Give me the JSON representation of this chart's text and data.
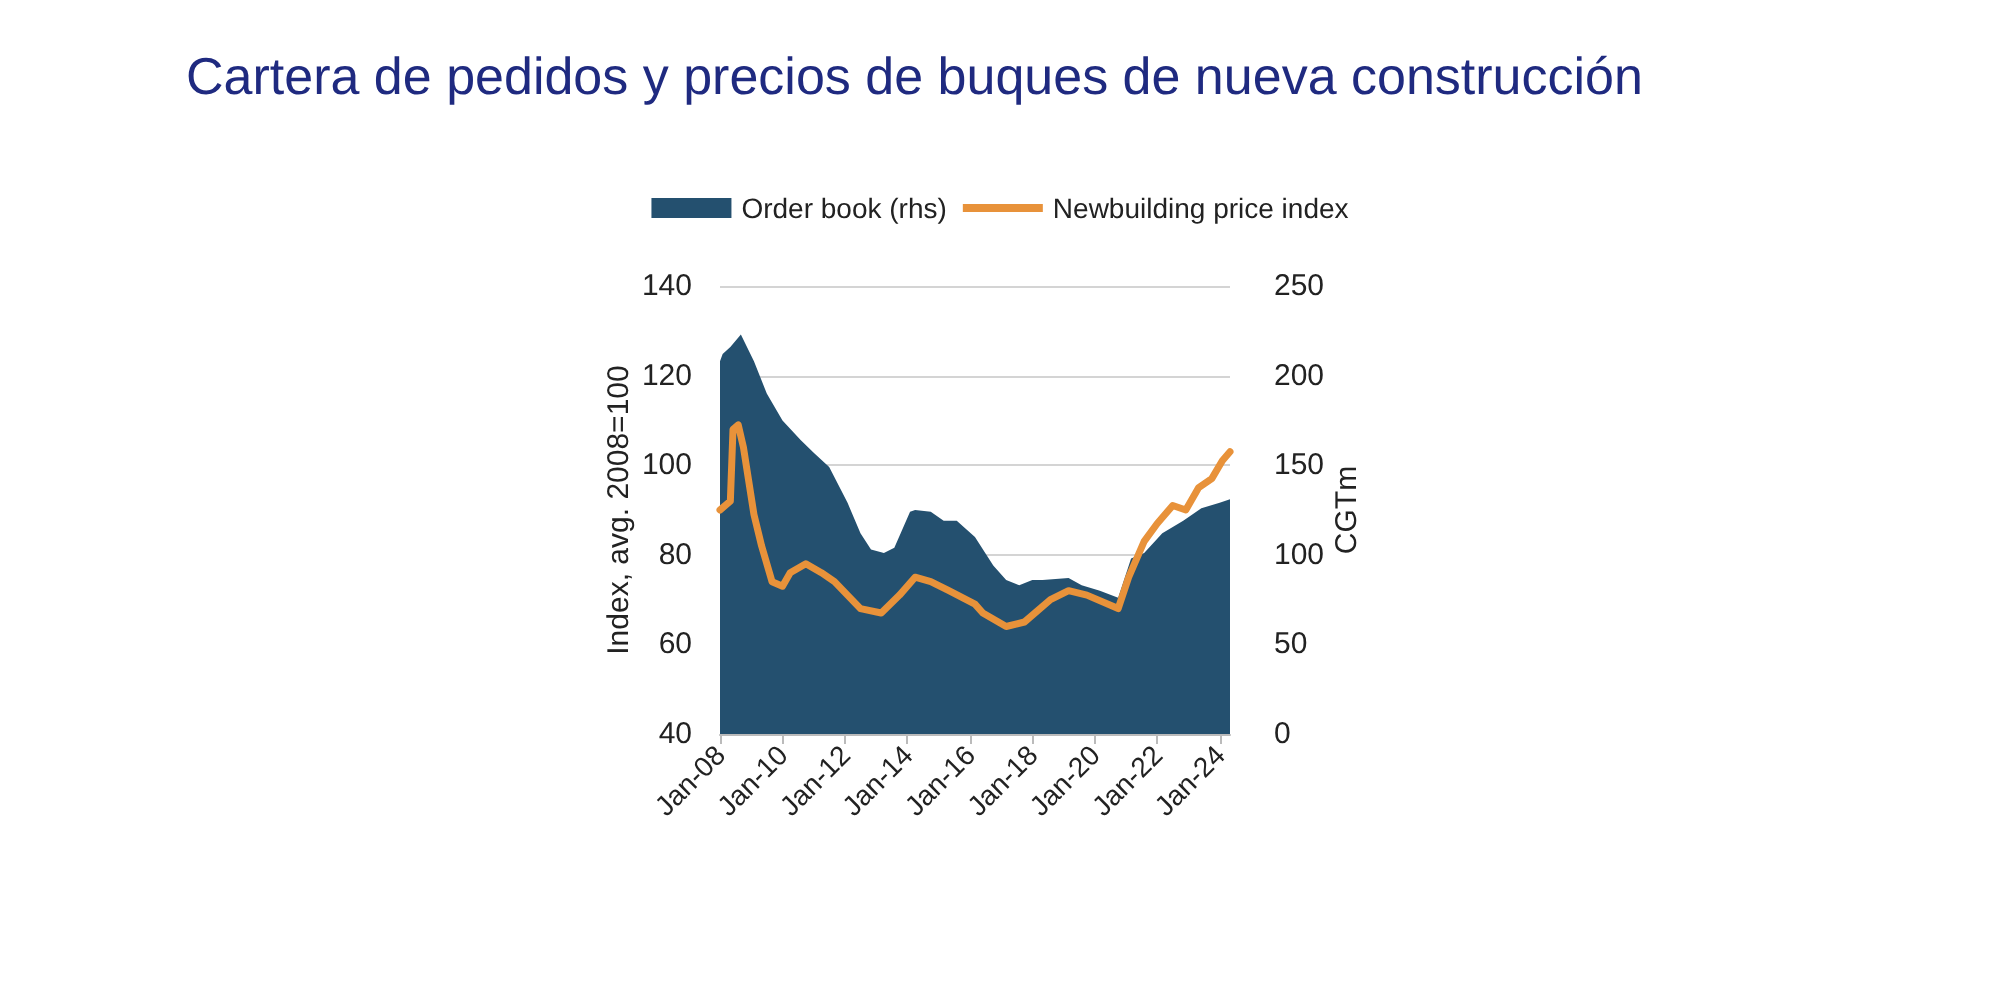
{
  "chart_data": {
    "type": "line",
    "title": "Cartera de pedidos y precios de buques de nueva construcción",
    "ylabel": "Index, avg. 2008=100",
    "y2label": "CGTm",
    "xlim": [
      "2008-01",
      "2024-05"
    ],
    "xticks": [
      {
        "value": "2008-01",
        "label": "Jan-08"
      },
      {
        "value": "2010-01",
        "label": "Jan-10"
      },
      {
        "value": "2012-01",
        "label": "Jan-12"
      },
      {
        "value": "2014-01",
        "label": "Jan-14"
      },
      {
        "value": "2016-01",
        "label": "Jan-16"
      },
      {
        "value": "2018-01",
        "label": "Jan-18"
      },
      {
        "value": "2020-01",
        "label": "Jan-20"
      },
      {
        "value": "2022-01",
        "label": "Jan-22"
      },
      {
        "value": "2024-01",
        "label": "Jan-24"
      }
    ],
    "ylim": [
      40,
      140
    ],
    "yticks": [
      40,
      60,
      80,
      100,
      120,
      140
    ],
    "y2lim": [
      0,
      250
    ],
    "y2ticks": [
      0,
      50,
      100,
      150,
      200,
      250
    ],
    "grid": "y",
    "legend": "top",
    "series": [
      {
        "name": "Order book (rhs)",
        "type": "area",
        "axis": "y2",
        "color": "#24506f",
        "x": [
          "2008-01",
          "2008-02",
          "2008-05",
          "2008-09",
          "2009-02",
          "2009-07",
          "2010-01",
          "2010-08",
          "2011-01",
          "2011-07",
          "2012-02",
          "2012-07",
          "2012-11",
          "2013-04",
          "2013-08",
          "2014-02",
          "2014-04",
          "2014-10",
          "2015-03",
          "2015-08",
          "2016-03",
          "2016-10",
          "2017-03",
          "2017-08",
          "2018-01",
          "2018-05",
          "2019-03",
          "2019-08",
          "2020-03",
          "2020-10",
          "2021-03",
          "2021-08",
          "2022-03",
          "2022-11",
          "2023-06",
          "2024-01",
          "2024-05"
        ],
        "values": [
          208,
          212,
          216,
          223,
          208,
          190,
          175,
          164,
          157,
          149,
          129,
          112,
          103,
          101,
          104,
          124,
          125,
          124,
          119,
          119,
          110,
          94,
          86,
          83,
          86,
          86,
          87,
          83,
          80,
          76,
          98,
          101,
          112,
          119,
          126,
          129,
          131
        ]
      },
      {
        "name": "Newbuilding price index",
        "color": "#e8923a",
        "x": [
          "2008-01",
          "2008-05",
          "2008-06",
          "2008-08",
          "2008-10",
          "2009-02",
          "2009-05",
          "2009-09",
          "2010-01",
          "2010-04",
          "2010-10",
          "2011-04",
          "2011-09",
          "2012-07",
          "2013-03",
          "2013-10",
          "2014-04",
          "2014-10",
          "2015-05",
          "2016-03",
          "2016-06",
          "2017-03",
          "2017-10",
          "2018-08",
          "2019-03",
          "2019-10",
          "2020-10",
          "2021-02",
          "2021-08",
          "2022-01",
          "2022-07",
          "2022-12",
          "2023-05",
          "2023-10",
          "2024-02",
          "2024-05"
        ],
        "values": [
          90,
          92,
          108,
          109,
          104,
          89,
          82,
          74,
          73,
          76,
          78,
          76,
          74,
          68,
          67,
          71,
          75,
          74,
          72,
          69,
          67,
          64,
          65,
          70,
          72,
          71,
          68,
          75,
          83,
          87,
          91,
          90,
          95,
          97,
          101,
          103
        ]
      }
    ]
  }
}
